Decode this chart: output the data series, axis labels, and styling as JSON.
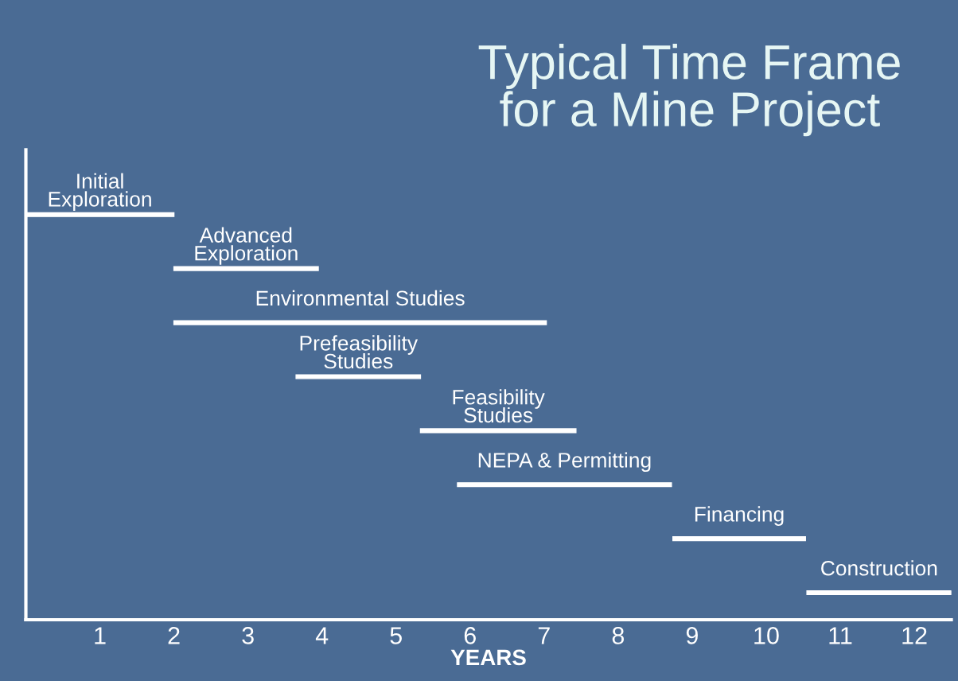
{
  "chart_data": {
    "type": "bar",
    "orientation": "horizontal",
    "title": "Typical Time Frame\nfor a Mine Project",
    "xlabel": "YEARS",
    "categories": [
      "Initial\nExploration",
      "Advanced\nExploration",
      "Environmental Studies",
      "Prefeasibility\nStudies",
      "Feasibility\nStudies",
      "NEPA & Permitting",
      "Financing",
      "Construction"
    ],
    "base": [
      0,
      2,
      2,
      3.65,
      5.33,
      5.83,
      8.74,
      10.55
    ],
    "values": [
      2,
      1.95,
      5.03,
      1.68,
      2.1,
      2.89,
      1.79,
      1.95
    ],
    "color": "#ffffff",
    "xlim": [
      0,
      12.5
    ],
    "xticks": [
      1,
      2,
      3,
      4,
      5,
      6,
      7,
      8,
      9,
      10,
      11,
      12
    ],
    "tick_labels": "x",
    "grid": false,
    "legend": false
  }
}
